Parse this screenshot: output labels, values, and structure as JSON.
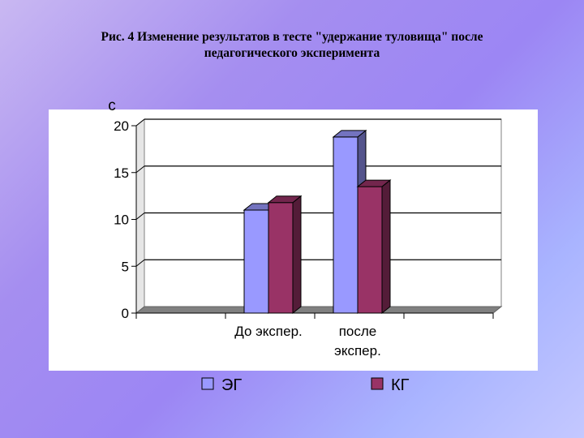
{
  "slide": {
    "title_line1": "Рис. 4 Изменение результатов в тесте \"удержание туловища\" после",
    "title_line2": "педагогического эксперимента"
  },
  "chart_data": {
    "type": "bar",
    "categories": [
      "До экспер.",
      "после экспер."
    ],
    "category_lines": [
      [
        "До экспер."
      ],
      [
        "после",
        "экспер."
      ]
    ],
    "series": [
      {
        "name": "ЭГ",
        "values": [
          11,
          18.8
        ],
        "color": "#9999ff"
      },
      {
        "name": "КГ",
        "values": [
          11.8,
          13.5
        ],
        "color": "#993366"
      }
    ],
    "ylabel": "с",
    "ylim": [
      0,
      20
    ],
    "yticks": [
      0,
      5,
      10,
      15,
      20
    ],
    "grid": true,
    "legend": "bottom",
    "plot_background": "#ffffff"
  }
}
